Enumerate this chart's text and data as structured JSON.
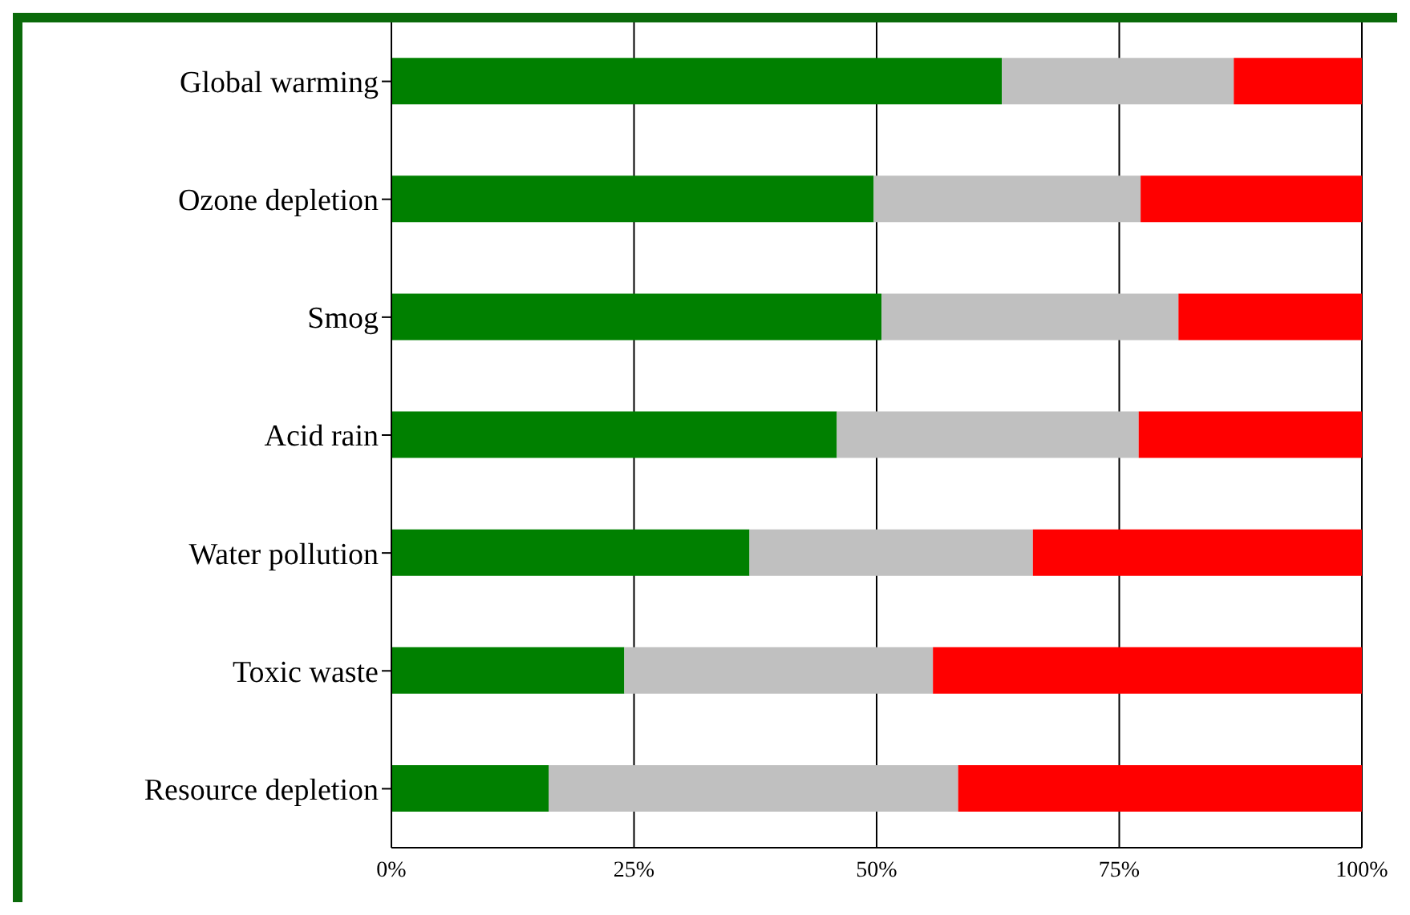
{
  "chart_data": {
    "type": "bar",
    "orientation": "horizontal",
    "stacked": true,
    "categories": [
      "Global warming",
      "Ozone depletion",
      "Smog",
      "Acid rain",
      "Water pollution",
      "Toxic waste",
      "Resource depletion"
    ],
    "series": [
      {
        "color": "#008000",
        "values": [
          62.9,
          49.7,
          50.5,
          45.9,
          36.9,
          24.0,
          16.2
        ]
      },
      {
        "color": "#c0c0c0",
        "values": [
          23.9,
          27.5,
          30.6,
          31.1,
          29.2,
          31.8,
          42.2
        ]
      },
      {
        "color": "#ff0000",
        "values": [
          13.2,
          22.8,
          18.9,
          23.0,
          33.9,
          44.2,
          41.6
        ]
      }
    ],
    "xlim": [
      0,
      100
    ],
    "xticks": [
      {
        "value": 0,
        "label": "0%"
      },
      {
        "value": 25,
        "label": "25%"
      },
      {
        "value": 50,
        "label": "50%"
      },
      {
        "value": 75,
        "label": "75%"
      },
      {
        "value": 100,
        "label": "100%"
      }
    ],
    "grid": "x"
  }
}
